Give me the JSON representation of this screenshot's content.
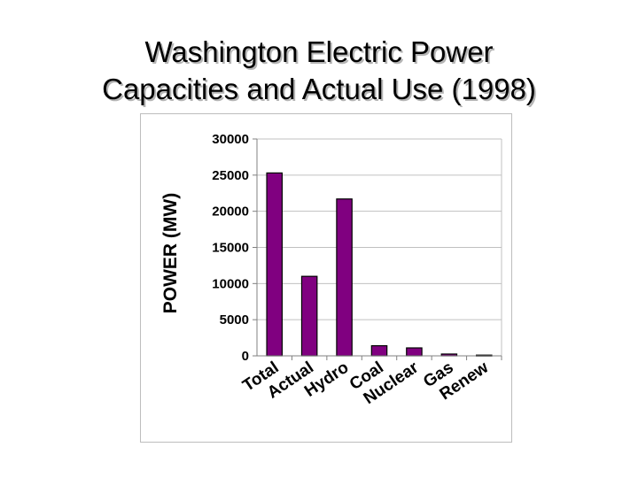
{
  "slide": {
    "title_line1": "Washington Electric Power",
    "title_line2": "Capacities and Actual Use (1998)"
  },
  "chart_data": {
    "type": "bar",
    "title": "",
    "xlabel": "",
    "ylabel": "POWER (MW)",
    "categories": [
      "Total",
      "Actual",
      "Hydro",
      "Coal",
      "Nuclear",
      "Gas",
      "Renew"
    ],
    "values": [
      25300,
      11000,
      21700,
      1400,
      1100,
      250,
      100
    ],
    "ylim": [
      0,
      30000
    ],
    "yticks": [
      0,
      5000,
      10000,
      15000,
      20000,
      25000,
      30000
    ],
    "grid": true,
    "legend": "none",
    "colors": {
      "bar_fill": "#800080",
      "bar_stroke": "#000000",
      "grid": "#c0c0c0",
      "axis": "#808080"
    }
  }
}
